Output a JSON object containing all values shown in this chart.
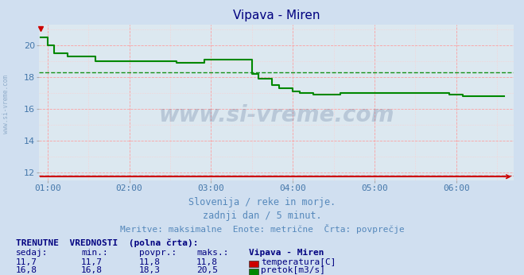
{
  "title": "Vipava - Miren",
  "title_color": "#000080",
  "bg_color": "#d0dff0",
  "plot_bg_color": "#dce8f0",
  "grid_color_major": "#ff9999",
  "grid_color_minor": "#ffcccc",
  "xlabel_text1": "Slovenija / reke in morje.",
  "xlabel_text2": "zadnji dan / 5 minut.",
  "xlabel_text3": "Meritve: maksimalne  Enote: metrične  Črta: povprečje",
  "xlim_hours": [
    0.9,
    6.7
  ],
  "ylim": [
    11.5,
    21.3
  ],
  "yticks": [
    12,
    14,
    16,
    18,
    20
  ],
  "xtick_labels": [
    "01:00",
    "02:00",
    "03:00",
    "04:00",
    "05:00",
    "06:00"
  ],
  "xtick_positions": [
    1.0,
    2.0,
    3.0,
    4.0,
    5.0,
    6.0
  ],
  "temp_color": "#cc0000",
  "flow_color": "#008800",
  "avg_temp": 11.8,
  "avg_flow": 18.3,
  "watermark": "www.si-vreme.com",
  "table_header": "TRENUTNE  VREDNOSTI  (polna črta):",
  "col_headers": [
    "sedaj:",
    "min.:",
    "povpr.:",
    "maks.:",
    "Vipava - Miren"
  ],
  "row1": [
    "11,7",
    "11,7",
    "11,8",
    "11,8",
    "temperatura[C]"
  ],
  "row2": [
    "16,8",
    "16,8",
    "18,3",
    "20,5",
    "pretok[m3/s]"
  ],
  "table_text_color": "#000080",
  "flow_data_x": [
    0.917,
    1.0,
    1.0,
    1.083,
    1.083,
    1.25,
    1.25,
    1.583,
    1.583,
    2.583,
    2.583,
    2.917,
    2.917,
    3.5,
    3.5,
    3.583,
    3.583,
    3.75,
    3.75,
    3.833,
    3.833,
    4.0,
    4.0,
    4.083,
    4.083,
    4.25,
    4.25,
    4.583,
    4.583,
    5.917,
    5.917,
    6.083,
    6.083,
    6.583
  ],
  "flow_data_y": [
    20.5,
    20.5,
    20.0,
    20.0,
    19.5,
    19.5,
    19.3,
    19.3,
    19.0,
    19.0,
    18.9,
    18.9,
    19.1,
    19.1,
    18.2,
    18.2,
    17.9,
    17.9,
    17.5,
    17.5,
    17.3,
    17.3,
    17.1,
    17.1,
    17.0,
    17.0,
    16.9,
    16.9,
    17.0,
    17.0,
    16.9,
    16.9,
    16.8,
    16.8
  ],
  "temp_data_x": [
    0.917,
    6.583
  ],
  "temp_data_y": [
    11.75,
    11.75
  ]
}
